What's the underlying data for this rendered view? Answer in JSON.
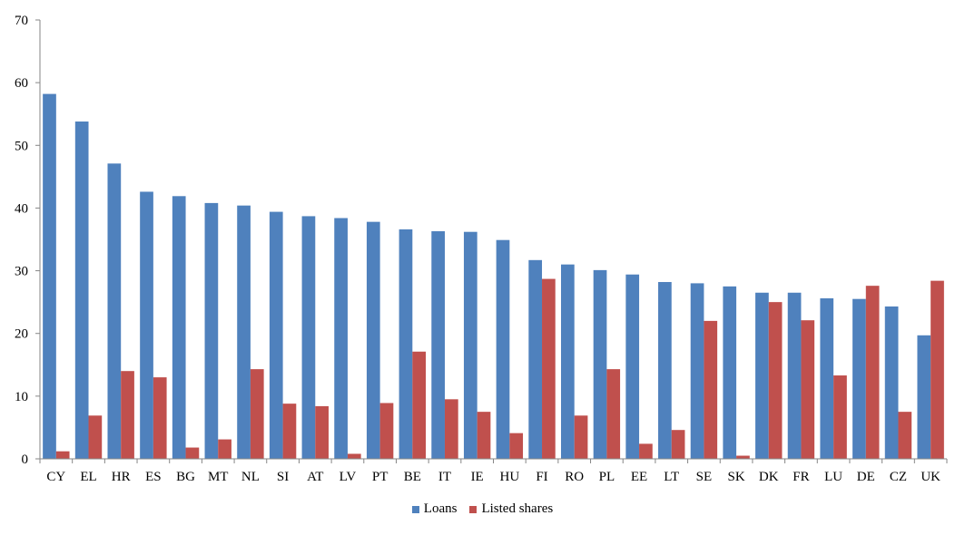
{
  "chart_data": {
    "type": "bar",
    "title": "",
    "xlabel": "",
    "ylabel": "",
    "ylim": [
      0,
      70
    ],
    "yticks": [
      0,
      10,
      20,
      30,
      40,
      50,
      60,
      70
    ],
    "grid": false,
    "legend_position": "bottom",
    "categories": [
      "CY",
      "EL",
      "HR",
      "ES",
      "BG",
      "MT",
      "NL",
      "SI",
      "AT",
      "LV",
      "PT",
      "BE",
      "IT",
      "IE",
      "HU",
      "FI",
      "RO",
      "PL",
      "EE",
      "LT",
      "SE",
      "SK",
      "DK",
      "FR",
      "LU",
      "DE",
      "CZ",
      "UK"
    ],
    "series": [
      {
        "name": "Loans",
        "color": "#4F81BD",
        "values": [
          58.2,
          53.8,
          47.1,
          42.6,
          41.9,
          40.8,
          40.4,
          39.4,
          38.7,
          38.4,
          37.8,
          36.6,
          36.3,
          36.2,
          34.9,
          31.7,
          31.0,
          30.1,
          29.4,
          28.2,
          28.0,
          27.5,
          26.5,
          26.5,
          25.6,
          25.5,
          24.3,
          19.7
        ]
      },
      {
        "name": "Listed shares",
        "color": "#C0504D",
        "values": [
          1.2,
          6.9,
          14.0,
          13.0,
          1.8,
          3.1,
          14.3,
          8.8,
          8.4,
          0.8,
          8.9,
          17.1,
          9.5,
          7.5,
          4.1,
          28.7,
          6.9,
          14.3,
          2.4,
          4.6,
          22.0,
          0.5,
          25.0,
          22.1,
          13.3,
          27.6,
          7.5,
          28.4
        ]
      }
    ]
  }
}
